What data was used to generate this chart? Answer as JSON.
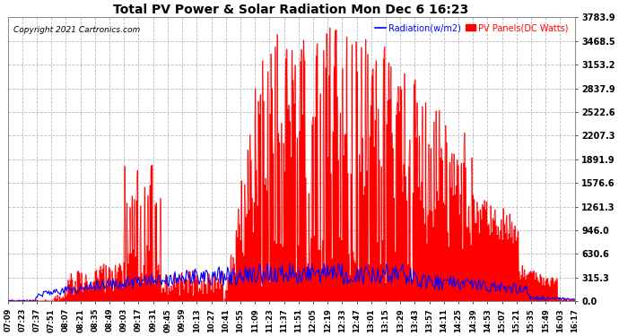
{
  "title": "Total PV Power & Solar Radiation Mon Dec 6 16:23",
  "copyright": "Copyright 2021 Cartronics.com",
  "legend_radiation": "Radiation(w/m2)",
  "legend_pv": "PV Panels(DC Watts)",
  "yticks": [
    0.0,
    315.3,
    630.6,
    946.0,
    1261.3,
    1576.6,
    1891.9,
    2207.3,
    2522.6,
    2837.9,
    3153.2,
    3468.5,
    3783.9
  ],
  "ymax": 3783.9,
  "bg_color": "#ffffff",
  "plot_bg_color": "#ffffff",
  "grid_color": "#bbbbbb",
  "pv_color": "#ff0000",
  "radiation_color": "#0000ff",
  "xtick_labels": [
    "07:09",
    "07:23",
    "07:37",
    "07:51",
    "08:07",
    "08:21",
    "08:35",
    "08:49",
    "09:03",
    "09:17",
    "09:31",
    "09:45",
    "09:59",
    "10:13",
    "10:27",
    "10:41",
    "10:55",
    "11:09",
    "11:23",
    "11:37",
    "11:51",
    "12:05",
    "12:19",
    "12:33",
    "12:47",
    "13:01",
    "13:15",
    "13:29",
    "13:43",
    "13:57",
    "14:11",
    "14:25",
    "14:39",
    "14:53",
    "15:07",
    "15:21",
    "15:35",
    "15:49",
    "16:03",
    "16:17"
  ],
  "n_points": 540
}
